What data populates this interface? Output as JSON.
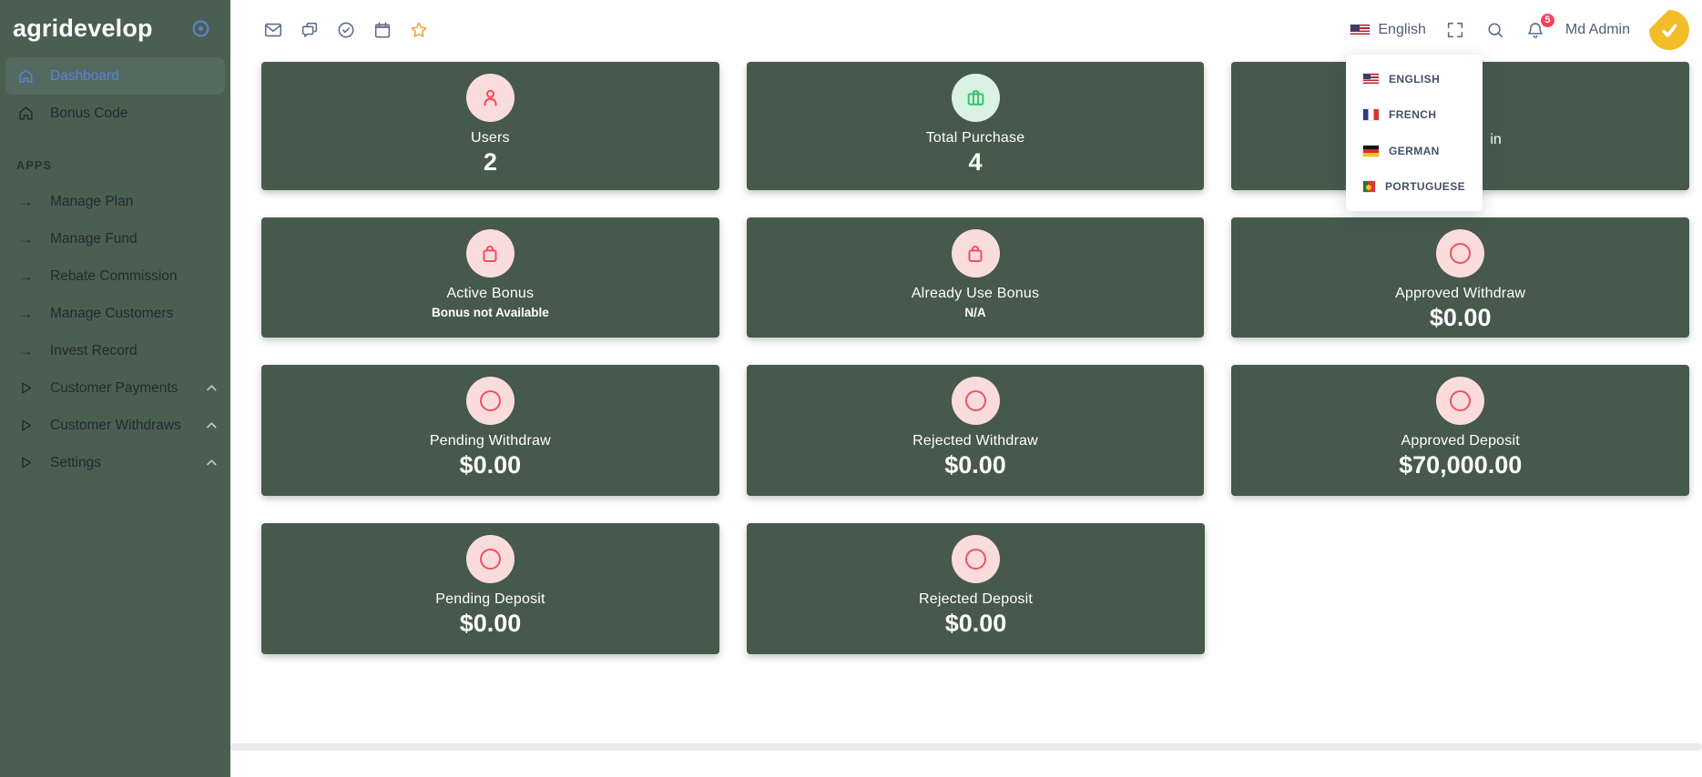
{
  "theme": {
    "sidebar_bg": "#4b5f51",
    "card_bg": "#46594b",
    "accent_blue": "#5c80d8",
    "icon_pink_bg": "#fbdcdc",
    "icon_red": "#ef5260",
    "icon_green_bg": "#d9f2e2",
    "icon_green": "#31c56d",
    "star_orange": "#f0a43c",
    "badge_red": "#f4435a"
  },
  "sidebar": {
    "logo": "agridevelop",
    "toggle_icon": "record-icon",
    "items": [
      {
        "type": "link",
        "icon": "home",
        "label": "Dashboard",
        "active": true
      },
      {
        "type": "link",
        "icon": "home",
        "label": "Bonus Code"
      },
      {
        "type": "section",
        "label": "APPS"
      },
      {
        "type": "link",
        "icon": "arrow",
        "label": "Manage Plan"
      },
      {
        "type": "link",
        "icon": "arrow",
        "label": "Manage Fund"
      },
      {
        "type": "link",
        "icon": "arrow",
        "label": "Rebate Commission"
      },
      {
        "type": "link",
        "icon": "arrow",
        "label": "Manage Customers"
      },
      {
        "type": "link",
        "icon": "arrow",
        "label": "Invest Record"
      },
      {
        "type": "link",
        "icon": "play",
        "label": "Customer Payments",
        "chevron": true
      },
      {
        "type": "link",
        "icon": "play",
        "label": "Customer Withdraws",
        "chevron": true
      },
      {
        "type": "link",
        "icon": "play",
        "label": "Settings",
        "chevron": true
      }
    ]
  },
  "topbar": {
    "icons": [
      "mail",
      "chat",
      "check-circle",
      "calendar",
      "star"
    ],
    "language": {
      "flag": "us",
      "label": "English"
    },
    "notifications_count": "5",
    "user": {
      "name": "Md Admin"
    }
  },
  "language_menu": {
    "open": true,
    "items": [
      {
        "flag": "us",
        "label": "ENGLISH"
      },
      {
        "flag": "fr",
        "label": "FRENCH"
      },
      {
        "flag": "de",
        "label": "GERMAN"
      },
      {
        "flag": "pt",
        "label": "PORTUGUESE"
      }
    ]
  },
  "cards": {
    "rows": [
      [
        {
          "icon": "person",
          "circle": "pink",
          "label": "Users",
          "value": "2"
        },
        {
          "icon": "briefcase",
          "circle": "green",
          "label": "Total Purchase",
          "value": "4"
        },
        {
          "partial_label": "in"
        }
      ],
      [
        {
          "icon": "bag",
          "circle": "pink",
          "label": "Active Bonus",
          "sub": "Bonus not Available"
        },
        {
          "icon": "bag",
          "circle": "pink",
          "label": "Already Use Bonus",
          "sub": "N/A"
        },
        {
          "icon": "ring",
          "circle": "pink",
          "label": "Approved Withdraw",
          "value": "$0.00"
        }
      ],
      [
        {
          "icon": "ring",
          "circle": "pink",
          "label": "Pending Withdraw",
          "value": "$0.00"
        },
        {
          "icon": "ring",
          "circle": "pink",
          "label": "Rejected Withdraw",
          "value": "$0.00"
        },
        {
          "icon": "ring",
          "circle": "pink",
          "label": "Approved Deposit",
          "value": "$70,000.00"
        }
      ],
      [
        {
          "icon": "ring",
          "circle": "pink",
          "label": "Pending Deposit",
          "value": "$0.00"
        },
        {
          "icon": "ring",
          "circle": "pink",
          "label": "Rejected Deposit",
          "value": "$0.00"
        }
      ]
    ]
  }
}
